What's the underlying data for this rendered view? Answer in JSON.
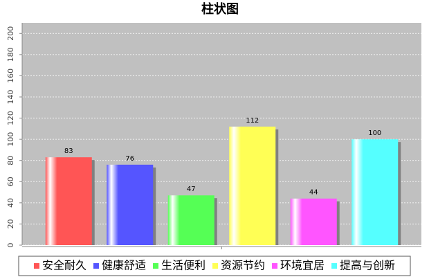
{
  "chart_data": {
    "type": "bar",
    "title": "柱状图",
    "categories": [
      null
    ],
    "series": [
      {
        "name": "安全耐久",
        "color": "#ff5555",
        "values": [
          83
        ]
      },
      {
        "name": "健康舒适",
        "color": "#5555ff",
        "values": [
          76
        ]
      },
      {
        "name": "生活便利",
        "color": "#55ff55",
        "values": [
          47
        ]
      },
      {
        "name": "资源节约",
        "color": "#ffff55",
        "values": [
          112
        ]
      },
      {
        "name": "环境宜居",
        "color": "#ff55ff",
        "values": [
          44
        ]
      },
      {
        "name": "提高与创新",
        "color": "#55ffff",
        "values": [
          100
        ]
      }
    ],
    "ylim": [
      0,
      210
    ],
    "yticks": [
      0,
      20,
      40,
      60,
      80,
      100,
      120,
      140,
      160,
      180,
      200
    ],
    "grid": true
  }
}
